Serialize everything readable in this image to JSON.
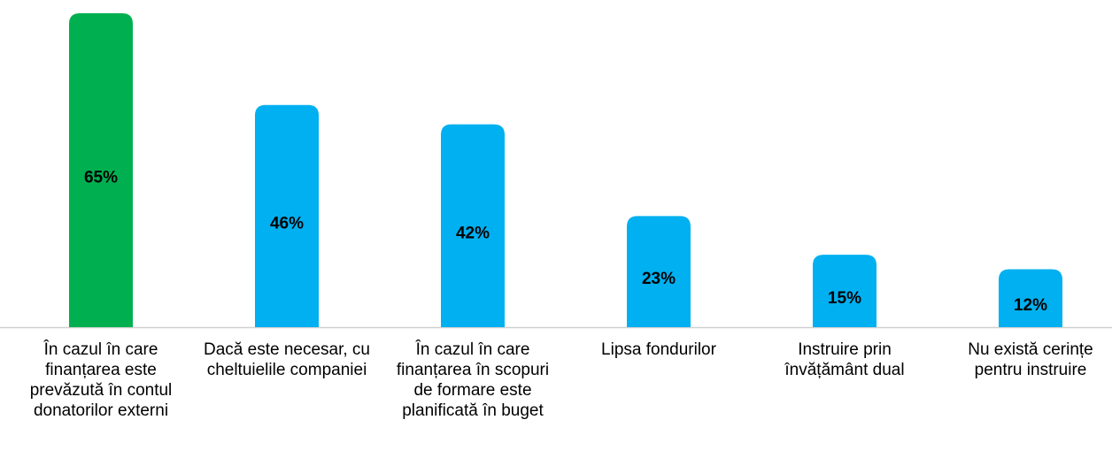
{
  "chart_data": {
    "type": "bar",
    "categories": [
      "În cazul în care finanțarea este prevăzută în contul donatorilor externi",
      "Dacă este necesar, cu cheltuielile companiei",
      "În cazul în care finanțarea în scopuri de formare este planificată în buget",
      "Lipsa fondurilor",
      "Instruire prin învățământ dual",
      "Nu există cerințe pentru instruire"
    ],
    "values": [
      65,
      46,
      42,
      23,
      15,
      12
    ],
    "value_labels": [
      "65%",
      "46%",
      "42%",
      "23%",
      "15%",
      "12%"
    ],
    "colors": [
      "#00b050",
      "#00b0f0",
      "#00b0f0",
      "#00b0f0",
      "#00b0f0",
      "#00b0f0"
    ]
  }
}
